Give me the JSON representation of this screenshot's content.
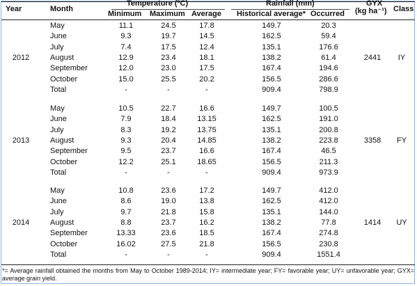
{
  "headers": {
    "year": "Year",
    "month": "Month",
    "temperature": "Temperature (ºC)",
    "rainfall": "Rainfall (mm)",
    "gy_line1": "GYX",
    "gy_line2": "(kg ha⁻¹)",
    "class": "Class",
    "minimum": "Minimum",
    "maximum": "Maximum",
    "average": "Average",
    "historical": "Historical average*",
    "occurred": "Occurred"
  },
  "groups": [
    {
      "year": "2012",
      "gy": "2441",
      "class": "IY",
      "rows": [
        {
          "month": "May",
          "min": "11.1",
          "max": "24.5",
          "avg": "17.8",
          "hist": "149.7",
          "occ": "20.3"
        },
        {
          "month": "June",
          "min": "9.3",
          "max": "19.7",
          "avg": "14.5",
          "hist": "162.5",
          "occ": "59.4"
        },
        {
          "month": "July",
          "min": "7.4",
          "max": "17.5",
          "avg": "12.4",
          "hist": "135.1",
          "occ": "176.6"
        },
        {
          "month": "August",
          "min": "12.9",
          "max": "23.4",
          "avg": "18.1",
          "hist": "138.2",
          "occ": "61.4"
        },
        {
          "month": "September",
          "min": "12.0",
          "max": "23.0",
          "avg": "17.5",
          "hist": "167.4",
          "occ": "194.6"
        },
        {
          "month": "October",
          "min": "15.0",
          "max": "25.5",
          "avg": "20.2",
          "hist": "156.5",
          "occ": "286.6"
        },
        {
          "month": "Total",
          "min": "-",
          "max": "-",
          "avg": "-",
          "hist": "909.4",
          "occ": "798.9"
        }
      ]
    },
    {
      "year": "2013",
      "gy": "3358",
      "class": "FY",
      "rows": [
        {
          "month": "May",
          "min": "10.5",
          "max": "22.7",
          "avg": "16.6",
          "hist": "149.7",
          "occ": "100.5"
        },
        {
          "month": "June",
          "min": "7.9",
          "max": "18.4",
          "avg": "13.15",
          "hist": "162.5",
          "occ": "191.0"
        },
        {
          "month": "July",
          "min": "8.3",
          "max": "19.2",
          "avg": "13.75",
          "hist": "135.1",
          "occ": "200.8"
        },
        {
          "month": "August",
          "min": "9.3",
          "max": "20.4",
          "avg": "14.85",
          "hist": "138.2",
          "occ": "223.8"
        },
        {
          "month": "September",
          "min": "9.5",
          "max": "23.7",
          "avg": "16.6",
          "hist": "167.4",
          "occ": "46.5"
        },
        {
          "month": "October",
          "min": "12.2",
          "max": "25.1",
          "avg": "18.65",
          "hist": "156.5",
          "occ": "211.3"
        },
        {
          "month": "Total",
          "min": "-",
          "max": "-",
          "avg": "-",
          "hist": "909.4",
          "occ": "973.9"
        }
      ]
    },
    {
      "year": "2014",
      "gy": "1414",
      "class": "UY",
      "rows": [
        {
          "month": "May",
          "min": "10.8",
          "max": "23.6",
          "avg": "17.2",
          "hist": "149.7",
          "occ": "412.0"
        },
        {
          "month": "June",
          "min": "8.6",
          "max": "19.0",
          "avg": "13.8",
          "hist": "162.5",
          "occ": "412.0"
        },
        {
          "month": "July",
          "min": "9.7",
          "max": "21.8",
          "avg": "15.8",
          "hist": "135.1",
          "occ": "144.0"
        },
        {
          "month": "August",
          "min": "8.8",
          "max": "23.7",
          "avg": "16.2",
          "hist": "138.2",
          "occ": "77.8"
        },
        {
          "month": "September",
          "min": "13.33",
          "max": "23.6",
          "avg": "18.5",
          "hist": "167.4",
          "occ": "274.8"
        },
        {
          "month": "October",
          "min": "16.02",
          "max": "27.5",
          "avg": "21.8",
          "hist": "156.5",
          "occ": "230.8"
        },
        {
          "month": "Total",
          "min": "-",
          "max": "-",
          "avg": "-",
          "hist": "909.4",
          "occ": "1551.4"
        }
      ]
    }
  ],
  "footnote": "*= Average rainfall obtained the months from May to October 1989-2014; IY= intermediate year; FY= favorable year; UY= unfavorable year; GYX= average grain yield."
}
